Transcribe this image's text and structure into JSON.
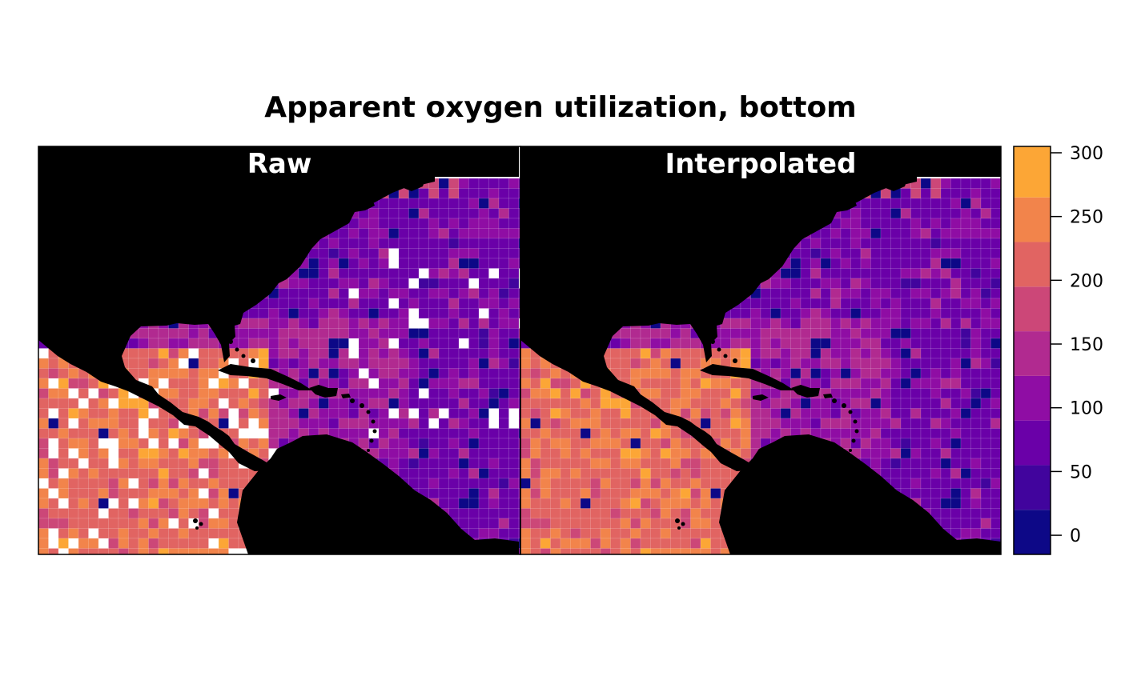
{
  "title": "Apparent oxygen utilization, bottom",
  "panels": [
    {
      "label": "Raw",
      "missing_cells_shown_white": true
    },
    {
      "label": "Interpolated",
      "missing_cells_shown_white": false
    }
  ],
  "legend": {
    "ticks": [
      0,
      50,
      100,
      150,
      200,
      250,
      300
    ],
    "range": [
      -15,
      305
    ],
    "breaks": [
      -15,
      20,
      55,
      90,
      125,
      160,
      195,
      230,
      265,
      305
    ],
    "colors": [
      "#0d0887",
      "#41049d",
      "#6a00a8",
      "#8f0da4",
      "#b12a90",
      "#cc4778",
      "#e16462",
      "#f2844b",
      "#fca636",
      "#fcce25",
      "#f0f921"
    ]
  },
  "colors": {
    "land": "#000000",
    "background": "#ffffff",
    "grid_line": "#ffffff"
  }
}
